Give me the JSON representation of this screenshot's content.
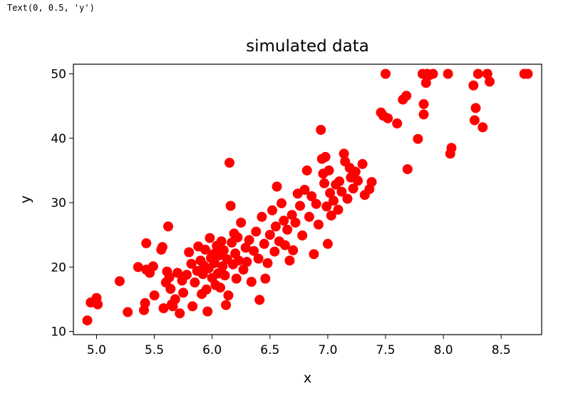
{
  "output_text": "Text(0, 0.5, 'y')",
  "chart_data": {
    "type": "scatter",
    "title": "simulated data",
    "xlabel": "x",
    "ylabel": "y",
    "xlim": [
      4.8,
      8.85
    ],
    "ylim": [
      9.5,
      51.5
    ],
    "xticks": [
      5.0,
      5.5,
      6.0,
      6.5,
      7.0,
      7.5,
      8.0,
      8.5
    ],
    "xtick_labels": [
      "5.0",
      "5.5",
      "6.0",
      "6.5",
      "7.0",
      "7.5",
      "8.0",
      "8.5"
    ],
    "yticks": [
      10,
      20,
      30,
      40,
      50
    ],
    "ytick_labels": [
      "10",
      "20",
      "30",
      "40",
      "50"
    ],
    "marker_color": "#ff0000",
    "grid": false,
    "points": [
      [
        4.92,
        11.7
      ],
      [
        4.95,
        14.5
      ],
      [
        5.0,
        15.2
      ],
      [
        5.01,
        14.2
      ],
      [
        5.2,
        17.8
      ],
      [
        5.27,
        13.0
      ],
      [
        5.36,
        20.0
      ],
      [
        5.41,
        13.3
      ],
      [
        5.42,
        14.4
      ],
      [
        5.43,
        23.7
      ],
      [
        5.43,
        19.6
      ],
      [
        5.46,
        19.1
      ],
      [
        5.49,
        20.1
      ],
      [
        5.5,
        15.6
      ],
      [
        5.56,
        22.7
      ],
      [
        5.57,
        23.1
      ],
      [
        5.58,
        13.6
      ],
      [
        5.6,
        17.6
      ],
      [
        5.61,
        19.3
      ],
      [
        5.62,
        26.3
      ],
      [
        5.63,
        18.4
      ],
      [
        5.64,
        16.6
      ],
      [
        5.65,
        14.2
      ],
      [
        5.66,
        13.9
      ],
      [
        5.68,
        15.0
      ],
      [
        5.7,
        19.1
      ],
      [
        5.72,
        12.8
      ],
      [
        5.74,
        17.9
      ],
      [
        5.75,
        16.0
      ],
      [
        5.78,
        18.8
      ],
      [
        5.8,
        22.3
      ],
      [
        5.82,
        20.5
      ],
      [
        5.83,
        13.9
      ],
      [
        5.85,
        17.6
      ],
      [
        5.87,
        19.4
      ],
      [
        5.88,
        23.2
      ],
      [
        5.9,
        21.0
      ],
      [
        5.91,
        15.8
      ],
      [
        5.92,
        18.9
      ],
      [
        5.93,
        20.2
      ],
      [
        5.94,
        22.7
      ],
      [
        5.95,
        16.5
      ],
      [
        5.96,
        13.1
      ],
      [
        5.97,
        19.8
      ],
      [
        5.98,
        24.5
      ],
      [
        5.99,
        21.4
      ],
      [
        6.0,
        18.3
      ],
      [
        6.01,
        22.0
      ],
      [
        6.02,
        20.6
      ],
      [
        6.03,
        17.2
      ],
      [
        6.04,
        23.3
      ],
      [
        6.05,
        19.0
      ],
      [
        6.06,
        21.8
      ],
      [
        6.07,
        16.8
      ],
      [
        6.08,
        24.0
      ],
      [
        6.09,
        20.1
      ],
      [
        6.1,
        22.6
      ],
      [
        6.11,
        18.7
      ],
      [
        6.12,
        14.1
      ],
      [
        6.13,
        21.2
      ],
      [
        6.14,
        15.6
      ],
      [
        6.15,
        36.2
      ],
      [
        6.16,
        29.5
      ],
      [
        6.17,
        23.8
      ],
      [
        6.18,
        20.4
      ],
      [
        6.19,
        25.2
      ],
      [
        6.2,
        22.1
      ],
      [
        6.21,
        18.2
      ],
      [
        6.22,
        24.6
      ],
      [
        6.23,
        21.0
      ],
      [
        6.25,
        26.9
      ],
      [
        6.27,
        19.6
      ],
      [
        6.29,
        23.0
      ],
      [
        6.3,
        20.8
      ],
      [
        6.32,
        24.2
      ],
      [
        6.34,
        17.7
      ],
      [
        6.36,
        22.5
      ],
      [
        6.38,
        25.5
      ],
      [
        6.4,
        21.3
      ],
      [
        6.41,
        14.9
      ],
      [
        6.43,
        27.8
      ],
      [
        6.45,
        23.6
      ],
      [
        6.46,
        18.2
      ],
      [
        6.48,
        20.6
      ],
      [
        6.5,
        25.0
      ],
      [
        6.52,
        28.8
      ],
      [
        6.54,
        22.4
      ],
      [
        6.55,
        26.3
      ],
      [
        6.56,
        32.5
      ],
      [
        6.58,
        24.0
      ],
      [
        6.6,
        29.9
      ],
      [
        6.62,
        27.2
      ],
      [
        6.63,
        23.4
      ],
      [
        6.65,
        25.8
      ],
      [
        6.67,
        21.0
      ],
      [
        6.69,
        28.1
      ],
      [
        6.7,
        22.6
      ],
      [
        6.72,
        26.9
      ],
      [
        6.74,
        31.4
      ],
      [
        6.76,
        29.5
      ],
      [
        6.78,
        24.9
      ],
      [
        6.8,
        32.0
      ],
      [
        6.82,
        35.0
      ],
      [
        6.84,
        27.8
      ],
      [
        6.86,
        31.0
      ],
      [
        6.88,
        22.0
      ],
      [
        6.9,
        29.8
      ],
      [
        6.92,
        26.6
      ],
      [
        6.94,
        41.3
      ],
      [
        6.95,
        36.8
      ],
      [
        6.96,
        34.5
      ],
      [
        6.97,
        33.0
      ],
      [
        6.98,
        37.1
      ],
      [
        6.99,
        29.4
      ],
      [
        7.0,
        23.6
      ],
      [
        7.01,
        35.0
      ],
      [
        7.02,
        31.5
      ],
      [
        7.03,
        28.0
      ],
      [
        7.05,
        30.3
      ],
      [
        7.07,
        32.8
      ],
      [
        7.09,
        28.9
      ],
      [
        7.1,
        33.3
      ],
      [
        7.12,
        31.7
      ],
      [
        7.14,
        37.6
      ],
      [
        7.15,
        36.4
      ],
      [
        7.17,
        30.6
      ],
      [
        7.19,
        35.4
      ],
      [
        7.2,
        33.9
      ],
      [
        7.22,
        32.2
      ],
      [
        7.24,
        34.8
      ],
      [
        7.26,
        33.4
      ],
      [
        7.3,
        36.0
      ],
      [
        7.32,
        31.2
      ],
      [
        7.36,
        32.1
      ],
      [
        7.38,
        33.2
      ],
      [
        7.46,
        44.0
      ],
      [
        7.48,
        43.5
      ],
      [
        7.5,
        50.0
      ],
      [
        7.52,
        43.1
      ],
      [
        7.6,
        42.3
      ],
      [
        7.65,
        46.0
      ],
      [
        7.68,
        46.6
      ],
      [
        7.69,
        35.2
      ],
      [
        7.78,
        39.9
      ],
      [
        7.82,
        50.0
      ],
      [
        7.83,
        45.3
      ],
      [
        7.83,
        43.7
      ],
      [
        7.85,
        48.6
      ],
      [
        7.86,
        50.0
      ],
      [
        7.88,
        49.8
      ],
      [
        7.91,
        50.0
      ],
      [
        8.04,
        50.0
      ],
      [
        8.06,
        37.6
      ],
      [
        8.07,
        38.5
      ],
      [
        8.26,
        48.2
      ],
      [
        8.27,
        42.8
      ],
      [
        8.28,
        44.7
      ],
      [
        8.3,
        50.0
      ],
      [
        8.34,
        41.7
      ],
      [
        8.38,
        50.0
      ],
      [
        8.4,
        48.8
      ],
      [
        8.7,
        50.0
      ],
      [
        8.73,
        50.0
      ]
    ]
  }
}
